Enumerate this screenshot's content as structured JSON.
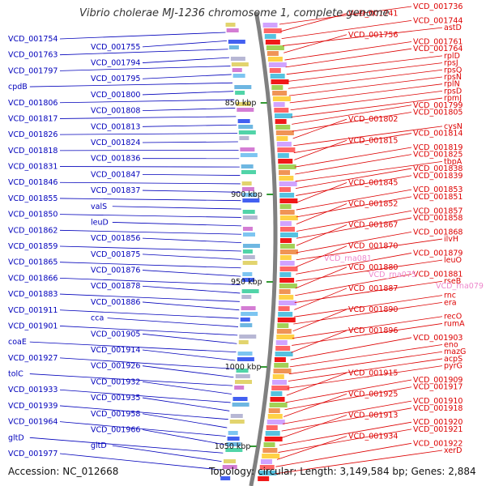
{
  "title": "Vibrio cholerae MJ-1236 chromosome 1, complete genome",
  "footer": {
    "accession": "Accession: NC_012668",
    "summary": "Topology: circular; Length: 3,149,584 bp; Genes: 2,884"
  },
  "colors": {
    "forward_label": "#0000bb",
    "reverse_label": "#dd0000",
    "rna_label": "#ee88cc",
    "backbone": "#808080",
    "tick": "#339933"
  },
  "kbp_ticks": [
    "850 kbp",
    "900 kbp",
    "950 kbp",
    "1000 kbp",
    "1050 kbp"
  ],
  "left_labels": [
    "VCD_001754",
    "VCD_001755",
    "VCD_001763",
    "VCD_001794",
    "VCD_001797",
    "VCD_001795",
    "cpdB",
    "VCD_001800",
    "VCD_001806",
    "VCD_001808",
    "VCD_001817",
    "VCD_001813",
    "VCD_001826",
    "VCD_001824",
    "VCD_001818",
    "VCD_001836",
    "VCD_001831",
    "VCD_001847",
    "VCD_001846",
    "VCD_001837",
    "VCD_001855",
    "valS",
    "VCD_001850",
    "leuD",
    "VCD_001862",
    "VCD_001856",
    "VCD_001859",
    "VCD_001875",
    "VCD_001865",
    "VCD_001876",
    "VCD_001866",
    "VCD_001878",
    "VCD_001883",
    "VCD_001886",
    "VCD_001911",
    "cca",
    "VCD_001901",
    "VCD_001905",
    "coaE",
    "VCD_001914",
    "VCD_001927",
    "VCD_001926",
    "tolC",
    "VCD_001932",
    "VCD_001933",
    "VCD_001935",
    "VCD_001939",
    "VCD_001958",
    "VCD_001964",
    "VCD_001966",
    "gltD",
    "gltD",
    "VCD_001977"
  ],
  "right_labels": [
    "VCD_001736",
    "VCD_001741",
    "VCD_001744",
    "astD",
    "VCD_001756",
    "VCD_001761",
    "VCD_001764",
    "rplD",
    "rpsJ",
    "rpsQ",
    "rpsN",
    "rplN",
    "rpsD",
    "rpmJ",
    "VCD_001799",
    "VCD_001805",
    "VCD_001802",
    "cysN",
    "VCD_001814",
    "VCD_001815",
    "VCD_001819",
    "VCD_001825",
    "tbpA",
    "VCD_001838",
    "VCD_001839",
    "VCD_001845",
    "VCD_001853",
    "VCD_001851",
    "VCD_001852",
    "VCD_001857",
    "VCD_001858",
    "VCD_001867",
    "VCD_001868",
    "ilvH",
    "VCD_001870",
    "VCD_001879",
    "leuO",
    "VCD_001880",
    "VCD_001881",
    "rseB",
    "VCD_001887",
    "rnc",
    "era",
    "VCD_001890",
    "recO",
    "rumA",
    "VCD_001896",
    "VCD_001903",
    "eno",
    "mazG",
    "acpS",
    "pyrG",
    "VCD_001915",
    "VCD_001909",
    "VCD_001917",
    "VCD_001925",
    "VCD_001910",
    "VCD_001918",
    "VCD_001913",
    "VCD_001920",
    "VCD_001921",
    "VCD_001934",
    "VCD_001922",
    "xerD"
  ],
  "rna_labels": [
    "VCD_rna081",
    "VCD_rna075",
    "VCD_rna079"
  ]
}
